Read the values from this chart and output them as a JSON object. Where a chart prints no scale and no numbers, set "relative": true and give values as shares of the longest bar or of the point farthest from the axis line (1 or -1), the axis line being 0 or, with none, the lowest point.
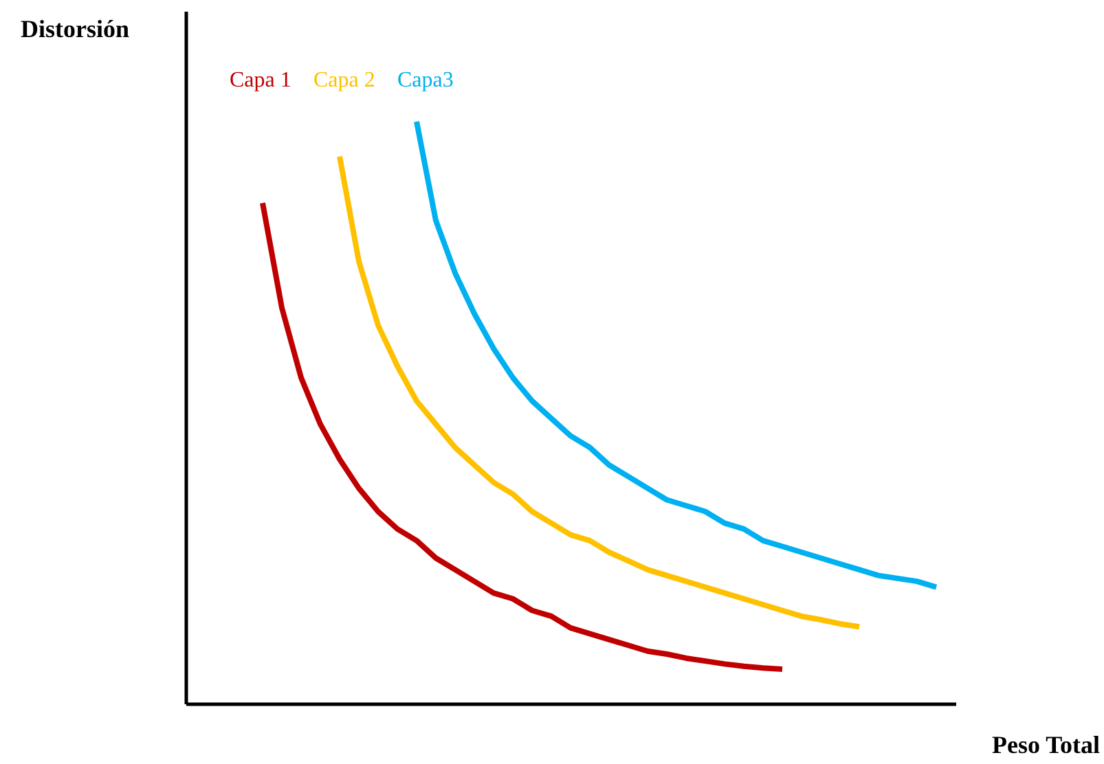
{
  "chart_data": {
    "type": "line",
    "relative": true,
    "xlabel": "Peso Total",
    "ylabel": "Distorsión",
    "legend": "top left",
    "grid": false,
    "tick_labels": false,
    "marker": "none",
    "line_style": "solid",
    "categories": [
      null,
      null,
      null,
      null,
      null,
      null,
      null,
      null,
      null,
      null,
      null,
      null,
      null,
      null,
      null,
      null,
      null,
      null,
      null,
      null,
      null,
      null,
      null,
      null,
      null,
      null,
      null,
      null,
      null,
      null,
      null,
      null,
      null,
      null,
      null,
      null,
      null,
      null,
      null,
      null,
      null
    ],
    "series": [
      {
        "name": "Capa 1",
        "color": "#c00000",
        "values": [
          null,
          null,
          null,
          null,
          0.86,
          0.68,
          0.56,
          0.48,
          0.42,
          0.37,
          0.33,
          0.3,
          0.28,
          0.25,
          0.23,
          0.21,
          0.19,
          0.18,
          0.16,
          0.15,
          0.13,
          0.12,
          0.11,
          0.1,
          0.09,
          0.085,
          0.078,
          0.073,
          0.068,
          0.064,
          0.061,
          0.059,
          null,
          null,
          null,
          null,
          null,
          null,
          null,
          null,
          null
        ]
      },
      {
        "name": "Capa 2",
        "color": "#ffc000",
        "values": [
          null,
          null,
          null,
          null,
          null,
          null,
          null,
          null,
          0.94,
          0.76,
          0.65,
          0.58,
          0.52,
          0.48,
          0.44,
          0.41,
          0.38,
          0.36,
          0.33,
          0.31,
          0.29,
          0.28,
          0.26,
          0.245,
          0.23,
          0.22,
          0.21,
          0.2,
          0.19,
          0.18,
          0.17,
          0.16,
          0.15,
          0.144,
          0.137,
          0.132,
          null,
          null,
          null,
          null,
          null
        ]
      },
      {
        "name": "Capa3",
        "color": "#00b0f0",
        "values": [
          null,
          null,
          null,
          null,
          null,
          null,
          null,
          null,
          null,
          null,
          null,
          null,
          1.0,
          0.83,
          0.74,
          0.67,
          0.61,
          0.56,
          0.52,
          0.49,
          0.46,
          0.44,
          0.41,
          0.39,
          0.37,
          0.35,
          0.34,
          0.33,
          0.31,
          0.3,
          0.28,
          0.27,
          0.26,
          0.25,
          0.24,
          0.23,
          0.22,
          0.215,
          0.21,
          0.2,
          null
        ]
      }
    ]
  }
}
